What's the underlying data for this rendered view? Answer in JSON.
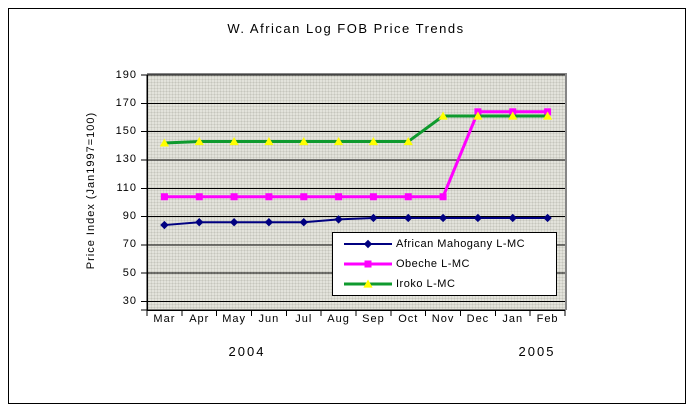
{
  "chart_data": {
    "type": "line",
    "title": "W. African Log FOB Price Trends",
    "ylabel": "Price Index (Jan1997=100)",
    "xlabel": "",
    "x_categories": [
      "Mar",
      "Apr",
      "May",
      "Jun",
      "Jul",
      "Aug",
      "Sep",
      "Oct",
      "Nov",
      "Dec",
      "Jan",
      "Feb"
    ],
    "x_year_labels": [
      "2004",
      "2005"
    ],
    "yticks": [
      190,
      170,
      150,
      130,
      110,
      90,
      70,
      50,
      30
    ],
    "ylim": [
      24,
      190
    ],
    "grid": "horizontal",
    "legend_position": "inside-bottom-right",
    "plot_background": "#e3e3db",
    "series": [
      {
        "name": "African Mahogany L-MC",
        "color": "#000080",
        "marker": "diamond",
        "marker_color": "#000080",
        "values": [
          84,
          86,
          86,
          86,
          86,
          88,
          89,
          89,
          89,
          89,
          89,
          89
        ]
      },
      {
        "name": "Obeche L-MC",
        "color": "#ff00ff",
        "marker": "square",
        "marker_color": "#ff00ff",
        "values": [
          104,
          104,
          104,
          104,
          104,
          104,
          104,
          104,
          104,
          164,
          164,
          164
        ]
      },
      {
        "name": "Iroko L-MC",
        "color": "#0f9a2e",
        "marker": "triangle",
        "marker_color": "#ffff00",
        "values": [
          142,
          143,
          143,
          143,
          143,
          143,
          143,
          143,
          161,
          161,
          161,
          161
        ]
      }
    ]
  }
}
